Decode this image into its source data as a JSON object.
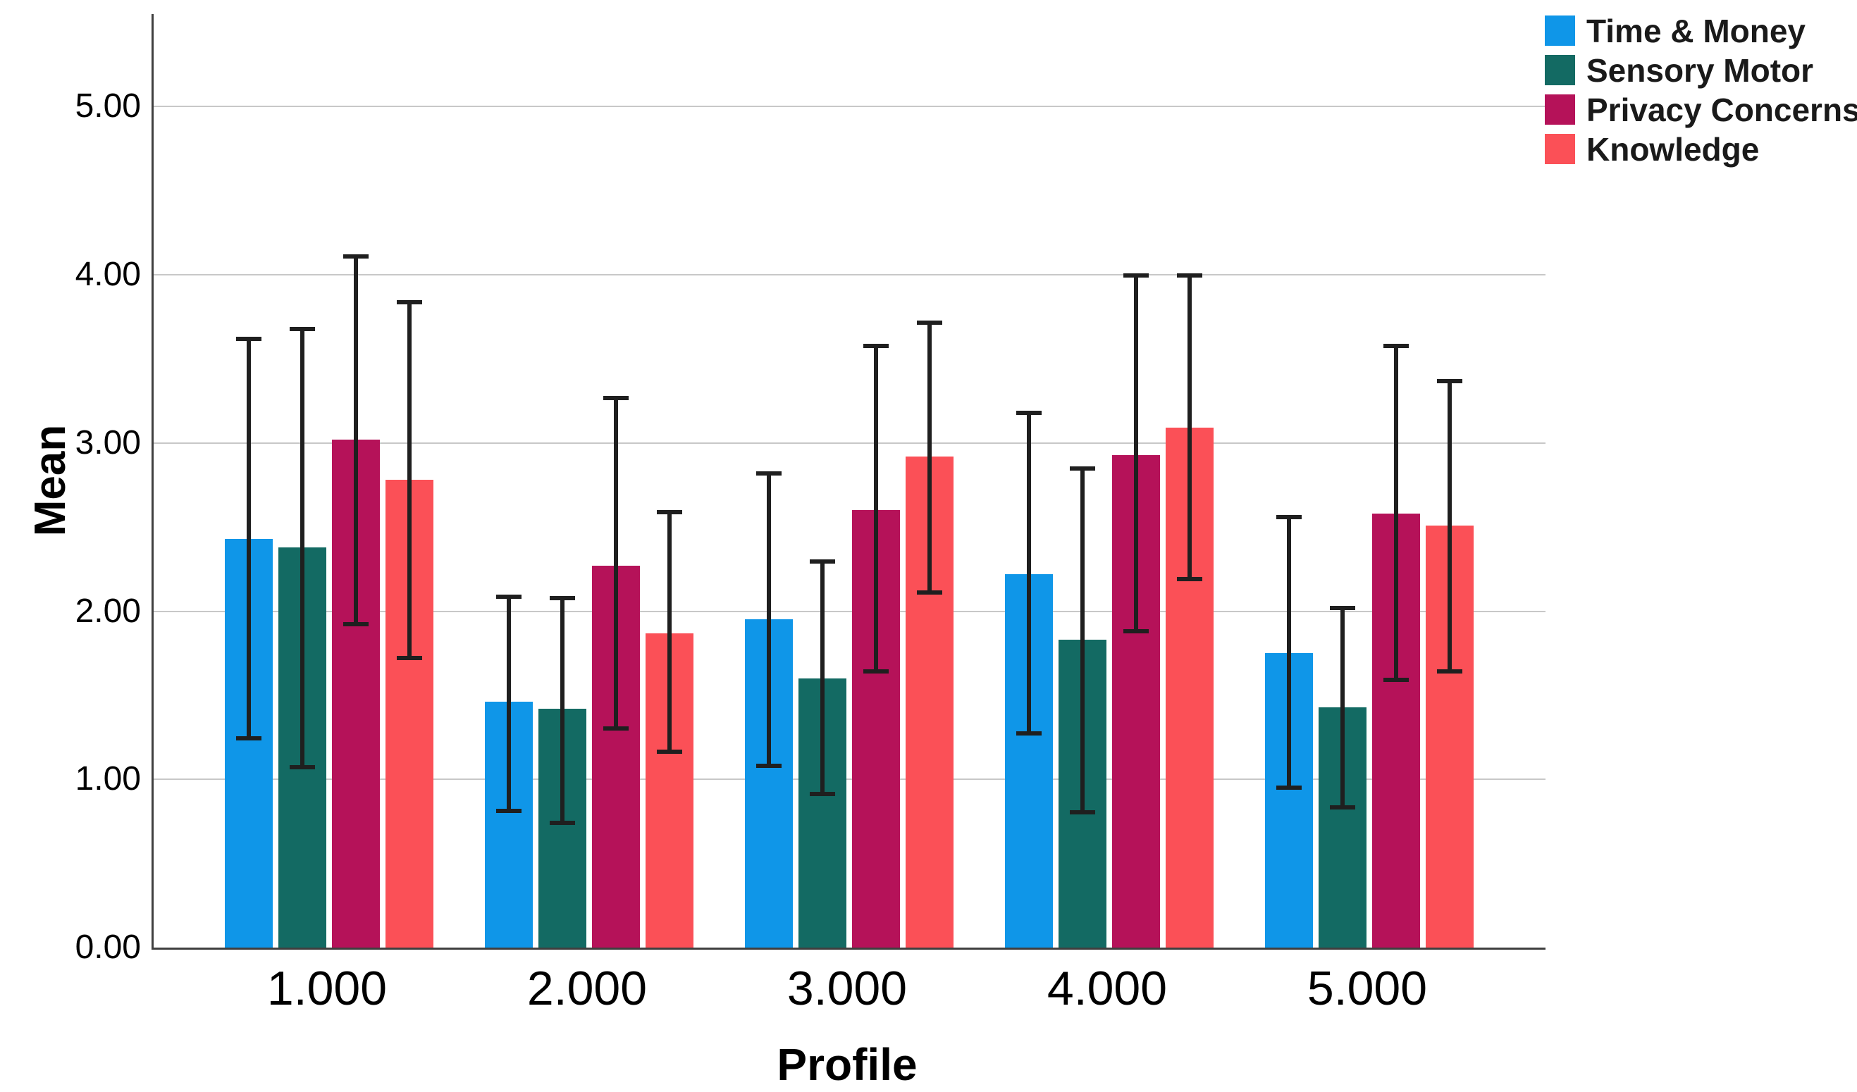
{
  "chart_data": {
    "type": "bar",
    "title": "",
    "xlabel": "Profile",
    "ylabel": "Mean",
    "categories": [
      "1.000",
      "2.000",
      "3.000",
      "4.000",
      "5.000"
    ],
    "ytick_labels": [
      "0.00",
      "1.00",
      "2.00",
      "3.00",
      "4.00",
      "5.00"
    ],
    "ytick_values": [
      0,
      1,
      2,
      3,
      4,
      5
    ],
    "ylim": [
      0,
      5.55
    ],
    "grid": true,
    "legend_position": "top-right-outside",
    "series": [
      {
        "name": "Time & Money",
        "color": "#0F96E8",
        "values": [
          2.43,
          1.46,
          1.95,
          2.22,
          1.75
        ],
        "error_low": [
          1.23,
          0.8,
          1.07,
          1.26,
          0.94
        ],
        "error_high": [
          3.63,
          2.1,
          2.83,
          3.19,
          2.57
        ]
      },
      {
        "name": "Sensory Motor",
        "color": "#136A63",
        "values": [
          2.38,
          1.42,
          1.6,
          1.83,
          1.43
        ],
        "error_low": [
          1.06,
          0.73,
          0.9,
          0.79,
          0.82
        ],
        "error_high": [
          3.69,
          2.09,
          2.31,
          2.86,
          2.03
        ]
      },
      {
        "name": "Privacy Concerns",
        "color": "#B51259",
        "values": [
          3.02,
          2.27,
          2.6,
          2.93,
          2.58
        ],
        "error_low": [
          1.91,
          1.29,
          1.63,
          1.87,
          1.58
        ],
        "error_high": [
          4.12,
          3.28,
          3.59,
          4.01,
          3.59
        ]
      },
      {
        "name": "Knowledge",
        "color": "#FB5057",
        "values": [
          2.78,
          1.87,
          2.92,
          3.09,
          2.51
        ],
        "error_low": [
          1.71,
          1.15,
          2.1,
          2.18,
          1.63
        ],
        "error_high": [
          3.85,
          2.6,
          3.73,
          4.01,
          3.38
        ]
      }
    ],
    "error_bar_color": "#1F1F1F",
    "gridline_color": "#C8C8C8",
    "axis_color": "#3F3F3F"
  }
}
